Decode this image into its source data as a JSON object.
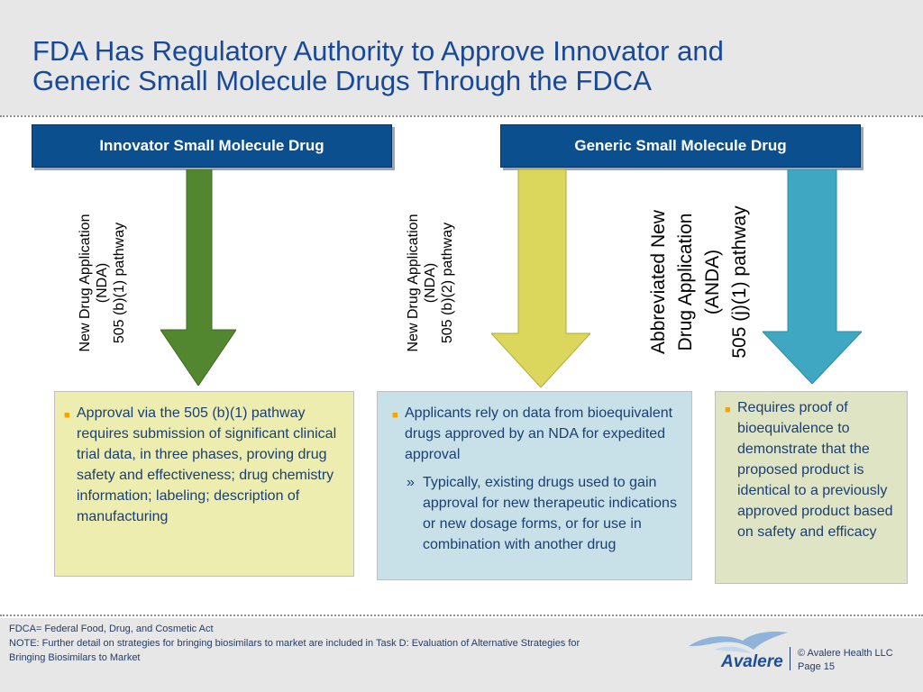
{
  "title": {
    "line1": "FDA Has Regulatory Authority to Approve Innovator and",
    "line2": "Generic Small Molecule Drugs Through the FDCA"
  },
  "headers": {
    "innovator": "Innovator Small Molecule Drug",
    "generic": "Generic Small Molecule Drug"
  },
  "pathways": {
    "nda_b1": {
      "line1": "New Drug Application",
      "line2": "(NDA)",
      "line3": "505 (b)(1) pathway"
    },
    "nda_b2": {
      "line1": "New Drug Application",
      "line2": "(NDA)",
      "line3": "505 (b)(2) pathway"
    },
    "anda": {
      "line1": "Abbreviated New",
      "line2": "Drug Application",
      "line3": "(ANDA)",
      "line4": "505 (j)(1) pathway"
    }
  },
  "colors": {
    "header_band": "#e7e7e7",
    "title": "#17489b",
    "header_box": "#0c4f8f",
    "arrow_green": "#53872f",
    "arrow_yellow": "#dbd65c",
    "arrow_blue": "#3fa7c2",
    "box_yellow": "#eeedb0",
    "box_blue": "#c8e1e9",
    "box_green": "#dfe4c4",
    "bullet": "#f0a500"
  },
  "boxes": {
    "innovator": {
      "bullet": "Approval via the 505 (b)(1) pathway requires submission of significant clinical trial data, in three phases, proving drug safety and effectiveness; drug chemistry information; labeling; description of manufacturing"
    },
    "generic_nda": {
      "bullet": "Applicants rely on data from bioequivalent drugs approved by an NDA for expedited approval",
      "sub_marker": "»",
      "sub": "Typically, existing drugs used to gain approval for new therapeutic indications or new dosage forms, or for use in combination with another drug"
    },
    "anda": {
      "bullet": "Requires proof of bioequivalence  to demonstrate that the proposed product is identical to a previously approved product based on safety and efficacy"
    }
  },
  "footer": {
    "line1": "FDCA= Federal Food, Drug, and Cosmetic Act",
    "line2": "NOTE: Further detail on strategies for bringing biosimilars to market are included in Task D: Evaluation of Alternative Strategies for",
    "line3": "Bringing Biosimilars to Market",
    "logo_name": "Avalere",
    "copyright": "© Avalere Health LLC",
    "page": "Page 15"
  }
}
